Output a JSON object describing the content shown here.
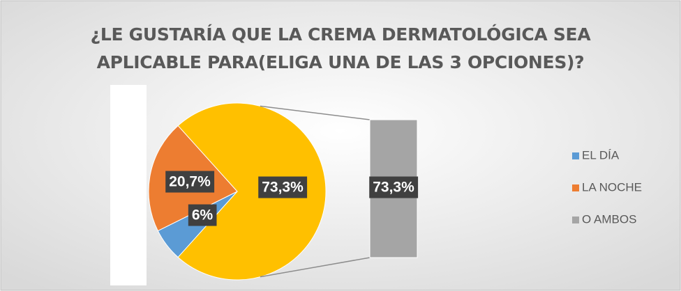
{
  "chart_data": {
    "type": "bar-of-pie",
    "title": "¿LE GUSTARÍA QUE LA CREMA DERMATOLÓGICA SEA APLICABLE PARA(ELIGA UNA DE LAS 3 OPCIONES)?",
    "categories": [
      "EL DÍA",
      "LA NOCHE",
      "O AMBOS"
    ],
    "values": [
      6,
      20.7,
      73.3
    ],
    "value_labels": [
      "6%",
      "20,7%",
      "73,3%"
    ],
    "colors": [
      "#5b9bd5",
      "#ed7d31",
      "#a5a5a5"
    ],
    "other_color": "#ffc000",
    "legend": "right"
  }
}
